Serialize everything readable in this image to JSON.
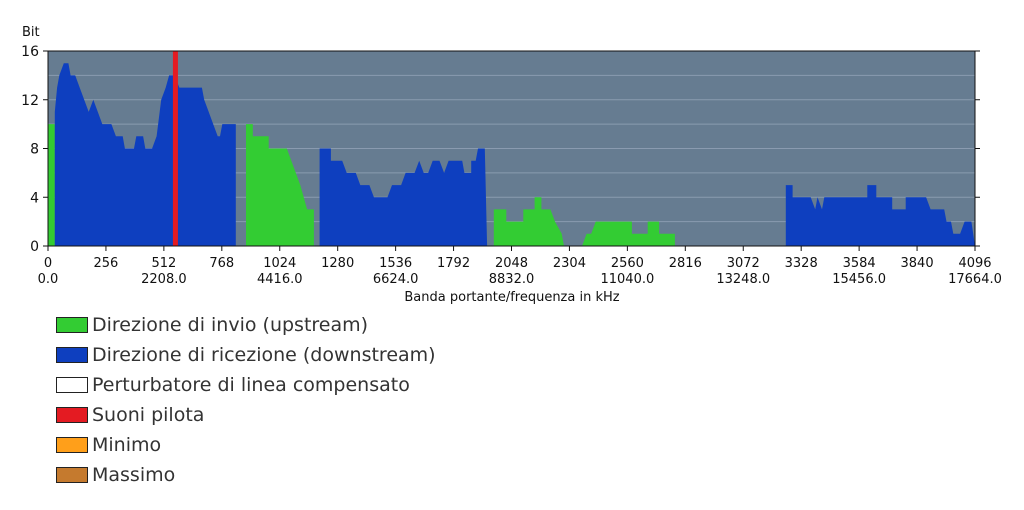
{
  "chart_data": {
    "type": "area",
    "ylabel": "Bit",
    "xlabel": "Banda portante/frequenza in kHz",
    "xlim": [
      0,
      4096
    ],
    "ylim": [
      0,
      16
    ],
    "yticks": [
      0,
      4,
      8,
      12,
      16
    ],
    "xticks": [
      0,
      256,
      512,
      768,
      1024,
      1280,
      1536,
      1792,
      2048,
      2304,
      2560,
      2816,
      3072,
      3328,
      3584,
      3840,
      4096
    ],
    "xticks_secondary": [
      "0.0",
      "2208.0",
      "4416.0",
      "6624.0",
      "8832.0",
      "11040.0",
      "13248.0",
      "15456.0",
      "17664.0"
    ],
    "grid": true,
    "colors": {
      "plot_background": "#667c91",
      "grid": "#8a9bb0",
      "upstream": "#33cc33",
      "downstream": "#0e3fbf",
      "pilot": "#e41b22"
    },
    "pilot_tones": [
      563
    ],
    "series": [
      {
        "name": "Direzione di invio (upstream)",
        "color": "#33cc33",
        "segments": [
          [
            [
              0,
              0
            ],
            [
              0,
              10
            ],
            [
              30,
              10
            ],
            [
              30,
              0
            ]
          ],
          [
            [
              875,
              0
            ],
            [
              875,
              10
            ],
            [
              905,
              10
            ],
            [
              905,
              9
            ],
            [
              975,
              9
            ],
            [
              975,
              8
            ],
            [
              1055,
              8
            ],
            [
              1075,
              7
            ],
            [
              1095,
              6
            ],
            [
              1115,
              5
            ],
            [
              1130,
              4
            ],
            [
              1145,
              3
            ],
            [
              1175,
              3
            ],
            [
              1175,
              0
            ]
          ],
          [
            [
              1970,
              0
            ],
            [
              1970,
              3
            ],
            [
              2025,
              3
            ],
            [
              2025,
              2
            ],
            [
              2100,
              2
            ],
            [
              2100,
              3
            ],
            [
              2150,
              3
            ],
            [
              2150,
              4
            ],
            [
              2180,
              4
            ],
            [
              2180,
              3
            ],
            [
              2220,
              3
            ],
            [
              2240,
              2
            ],
            [
              2270,
              1
            ],
            [
              2280,
              0
            ]
          ],
          [
            [
              2360,
              0
            ],
            [
              2380,
              1
            ],
            [
              2400,
              1
            ],
            [
              2420,
              2
            ],
            [
              2580,
              2
            ],
            [
              2580,
              1
            ],
            [
              2650,
              1
            ],
            [
              2650,
              2
            ],
            [
              2700,
              2
            ],
            [
              2700,
              1
            ],
            [
              2770,
              1
            ],
            [
              2770,
              0
            ]
          ]
        ]
      },
      {
        "name": "Direzione di ricezione (downstream)",
        "color": "#0e3fbf",
        "segments": [
          [
            [
              30,
              0
            ],
            [
              30,
              11
            ],
            [
              40,
              13
            ],
            [
              50,
              14
            ],
            [
              70,
              15
            ],
            [
              90,
              15
            ],
            [
              100,
              14
            ],
            [
              120,
              14
            ],
            [
              140,
              13
            ],
            [
              160,
              12
            ],
            [
              180,
              11
            ],
            [
              200,
              12
            ],
            [
              220,
              11
            ],
            [
              240,
              10
            ],
            [
              280,
              10
            ],
            [
              300,
              9
            ],
            [
              330,
              9
            ],
            [
              340,
              8
            ],
            [
              380,
              8
            ],
            [
              390,
              9
            ],
            [
              420,
              9
            ],
            [
              430,
              8
            ],
            [
              460,
              8
            ],
            [
              480,
              9
            ],
            [
              500,
              12
            ],
            [
              520,
              13
            ],
            [
              535,
              14
            ],
            [
              560,
              14
            ],
            [
              580,
              13
            ],
            [
              610,
              13
            ],
            [
              680,
              13
            ],
            [
              690,
              12
            ],
            [
              710,
              11
            ],
            [
              730,
              10
            ],
            [
              750,
              9
            ],
            [
              760,
              9
            ],
            [
              770,
              10
            ],
            [
              830,
              10
            ],
            [
              830,
              0
            ]
          ],
          [
            [
              1200,
              0
            ],
            [
              1200,
              8
            ],
            [
              1250,
              8
            ],
            [
              1250,
              7
            ],
            [
              1300,
              7
            ],
            [
              1320,
              6
            ],
            [
              1360,
              6
            ],
            [
              1380,
              5
            ],
            [
              1420,
              5
            ],
            [
              1440,
              4
            ],
            [
              1500,
              4
            ],
            [
              1520,
              5
            ],
            [
              1560,
              5
            ],
            [
              1580,
              6
            ],
            [
              1620,
              6
            ],
            [
              1640,
              7
            ],
            [
              1660,
              6
            ],
            [
              1680,
              6
            ],
            [
              1700,
              7
            ],
            [
              1730,
              7
            ],
            [
              1750,
              6
            ],
            [
              1770,
              7
            ],
            [
              1830,
              7
            ],
            [
              1840,
              6
            ],
            [
              1870,
              6
            ],
            [
              1870,
              7
            ],
            [
              1890,
              7
            ],
            [
              1900,
              8
            ],
            [
              1930,
              8
            ],
            [
              1940,
              0
            ]
          ],
          [
            [
              3260,
              0
            ],
            [
              3260,
              5
            ],
            [
              3290,
              5
            ],
            [
              3290,
              4
            ],
            [
              3370,
              4
            ],
            [
              3390,
              3
            ],
            [
              3400,
              4
            ],
            [
              3420,
              3
            ],
            [
              3430,
              4
            ],
            [
              3620,
              4
            ],
            [
              3620,
              5
            ],
            [
              3660,
              5
            ],
            [
              3660,
              4
            ],
            [
              3730,
              4
            ],
            [
              3730,
              3
            ],
            [
              3790,
              3
            ],
            [
              3790,
              4
            ],
            [
              3880,
              4
            ],
            [
              3900,
              3
            ],
            [
              3960,
              3
            ],
            [
              3970,
              2
            ],
            [
              3990,
              2
            ],
            [
              4000,
              1
            ],
            [
              4030,
              1
            ],
            [
              4050,
              2
            ],
            [
              4080,
              2
            ],
            [
              4096,
              0
            ]
          ]
        ]
      }
    ],
    "legend": [
      {
        "label": "Direzione di invio (upstream)",
        "color": "#33cc33"
      },
      {
        "label": "Direzione di ricezione (downstream)",
        "color": "#0e3fbf"
      },
      {
        "label": "Perturbatore di linea compensato",
        "color": "#ffffff"
      },
      {
        "label": "Suoni pilota",
        "color": "#e41b22"
      },
      {
        "label": "Minimo",
        "color": "#ff9f1a"
      },
      {
        "label": "Massimo",
        "color": "#c57a2e"
      }
    ]
  }
}
